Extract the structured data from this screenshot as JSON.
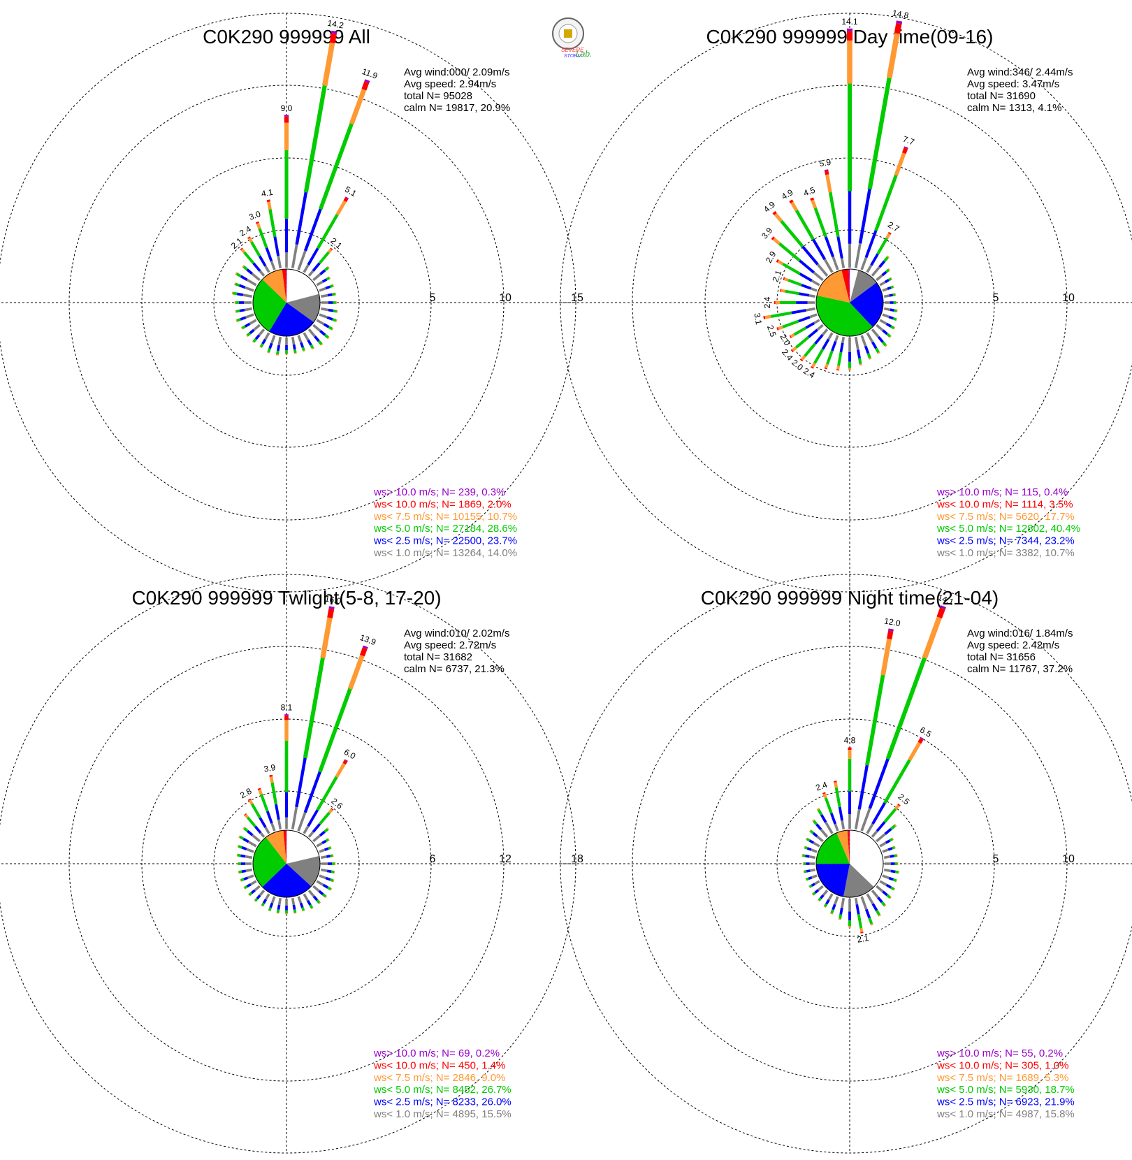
{
  "logo": {
    "text_line1": "SEVERE",
    "text_line2": "STORM",
    "text_lab": "Lab."
  },
  "colors": {
    "gt10": "#9900cc",
    "lt10": "#ff0000",
    "lt7_5": "#ff9933",
    "lt5": "#00cc00",
    "lt2_5": "#0000ff",
    "lt1": "#808080",
    "calm": "#ffffff"
  },
  "chart_data": [
    {
      "type": "wind-rose",
      "title": "C0K290 999999 All",
      "rmax": 15,
      "ring_labels": [
        "5",
        "10",
        "15"
      ],
      "stats": [
        "Avg wind:000/ 2.09m/s",
        "Avg speed: 2.94m/s",
        "total N=      95028",
        "calm N=  19817,  20.9%"
      ],
      "pie_percent": {
        "calm": 20.9,
        "lt1": 14.0,
        "lt2_5": 23.7,
        "lt5": 28.6,
        "lt7_5": 10.7,
        "lt10": 2.0,
        "gt10": 0.3
      },
      "dir_totals": [
        9.0,
        14.2,
        11.9,
        5.1,
        2.1,
        1.2,
        0.9,
        0.9,
        0.9,
        0.9,
        1.0,
        1.1,
        1.1,
        1.2,
        1.2,
        1.1,
        1.0,
        1.0,
        1.0,
        1.1,
        1.1,
        1.0,
        1.0,
        1.0,
        1.0,
        1.1,
        1.0,
        1.0,
        1.2,
        1.2,
        1.4,
        1.3,
        2.1,
        2.4,
        3.0,
        4.1
      ],
      "value_labels": [
        {
          "dir": 0,
          "text": "9.0"
        },
        {
          "dir": 1,
          "text": "14.2"
        },
        {
          "dir": 2,
          "text": "11.9"
        },
        {
          "dir": 3,
          "text": "5.1"
        },
        {
          "dir": 4,
          "text": "2.1"
        },
        {
          "dir": 32,
          "text": "2.1"
        },
        {
          "dir": 33,
          "text": "2.4"
        },
        {
          "dir": 34,
          "text": "3.0"
        },
        {
          "dir": 35,
          "text": "4.1"
        }
      ],
      "legend": [
        {
          "cls": "gt10",
          "text": "ws> 10.0 m/s; N=   239,  0.3%"
        },
        {
          "cls": "lt10",
          "text": "ws< 10.0 m/s; N=  1869,  2.0%"
        },
        {
          "cls": "lt7_5",
          "text": "ws<  7.5 m/s; N= 10155, 10.7%"
        },
        {
          "cls": "lt5",
          "text": "ws<  5.0 m/s; N= 27184, 28.6%"
        },
        {
          "cls": "lt2_5",
          "text": "ws<  2.5 m/s; N= 22500, 23.7%"
        },
        {
          "cls": "lt1",
          "text": "ws<  1.0 m/s; N= 13264, 14.0%"
        }
      ]
    },
    {
      "type": "wind-rose",
      "title": "C0K290 999999 Day time(09-16)",
      "rmax": 15,
      "ring_labels": [
        "5",
        "10",
        "15"
      ],
      "stats": [
        "Avg wind:346/ 2.44m/s",
        "Avg speed: 3.47m/s",
        "total N=      31690",
        "calm N=   1313,   4.1%"
      ],
      "pie_percent": {
        "calm": 4.1,
        "lt1": 10.7,
        "lt2_5": 23.2,
        "lt5": 40.4,
        "lt7_5": 17.7,
        "lt10": 3.5,
        "gt10": 0.4
      },
      "dir_totals": [
        14.1,
        14.8,
        7.7,
        2.7,
        1.5,
        1.0,
        0.8,
        0.7,
        0.7,
        0.7,
        0.8,
        0.9,
        1.0,
        1.1,
        1.3,
        1.4,
        1.5,
        1.7,
        1.9,
        2.0,
        2.1,
        2.4,
        2.4,
        2.4,
        2.0,
        2.5,
        3.1,
        2.4,
        2.1,
        2.1,
        2.9,
        3.9,
        4.9,
        4.9,
        4.5,
        5.9
      ],
      "value_labels": [
        {
          "dir": 0,
          "text": "14.1"
        },
        {
          "dir": 1,
          "text": "14.8"
        },
        {
          "dir": 2,
          "text": "7.7"
        },
        {
          "dir": 3,
          "text": "2.7"
        },
        {
          "dir": 21,
          "text": "2.4"
        },
        {
          "dir": 22,
          "text": "2.0"
        },
        {
          "dir": 23,
          "text": "2.4"
        },
        {
          "dir": 24,
          "text": "2.0"
        },
        {
          "dir": 25,
          "text": "2.5"
        },
        {
          "dir": 26,
          "text": "3.1"
        },
        {
          "dir": 27,
          "text": "2.4"
        },
        {
          "dir": 29,
          "text": "2.1"
        },
        {
          "dir": 30,
          "text": "2.9"
        },
        {
          "dir": 31,
          "text": "3.9"
        },
        {
          "dir": 32,
          "text": "4.9"
        },
        {
          "dir": 33,
          "text": "4.9"
        },
        {
          "dir": 34,
          "text": "4.5"
        },
        {
          "dir": 35,
          "text": "5.9"
        }
      ],
      "legend": [
        {
          "cls": "gt10",
          "text": "ws> 10.0 m/s; N=   115,  0.4%"
        },
        {
          "cls": "lt10",
          "text": "ws< 10.0 m/s; N=  1114,  3.5%"
        },
        {
          "cls": "lt7_5",
          "text": "ws<  7.5 m/s; N=  5620, 17.7%"
        },
        {
          "cls": "lt5",
          "text": "ws<  5.0 m/s; N= 12802, 40.4%"
        },
        {
          "cls": "lt2_5",
          "text": "ws<  2.5 m/s; N=  7344, 23.2%"
        },
        {
          "cls": "lt1",
          "text": "ws<  1.0 m/s; N=  3382, 10.7%"
        }
      ]
    },
    {
      "type": "wind-rose",
      "title": "C0K290 999999 Twlight(5-8, 17-20)",
      "rmax": 18,
      "ring_labels": [
        "6",
        "12",
        "18"
      ],
      "stats": [
        "Avg wind:010/ 2.02m/s",
        "Avg speed: 2.72m/s",
        "total N=      31682",
        "calm N=   6737,  21.3%"
      ],
      "pie_percent": {
        "calm": 21.3,
        "lt1": 15.5,
        "lt2_5": 26.0,
        "lt5": 26.7,
        "lt7_5": 9.0,
        "lt10": 1.4,
        "gt10": 0.2
      },
      "dir_totals": [
        8.1,
        16.0,
        13.9,
        6.0,
        2.6,
        1.4,
        1.0,
        0.9,
        0.9,
        1.0,
        1.0,
        1.1,
        1.2,
        1.2,
        1.2,
        1.2,
        1.1,
        1.1,
        1.1,
        1.1,
        1.1,
        1.0,
        1.0,
        1.0,
        1.0,
        1.0,
        1.0,
        1.0,
        1.1,
        1.2,
        1.4,
        1.5,
        2.1,
        2.8,
        3.2,
        3.9
      ],
      "value_labels": [
        {
          "dir": 0,
          "text": "8.1"
        },
        {
          "dir": 1,
          "text": "16.0"
        },
        {
          "dir": 2,
          "text": "13.9"
        },
        {
          "dir": 3,
          "text": "6.0"
        },
        {
          "dir": 4,
          "text": "2.6"
        },
        {
          "dir": 33,
          "text": "2.8"
        },
        {
          "dir": 35,
          "text": "3.9"
        }
      ],
      "legend": [
        {
          "cls": "gt10",
          "text": "ws> 10.0 m/s; N=    69,  0.2%"
        },
        {
          "cls": "lt10",
          "text": "ws< 10.0 m/s; N=   450,  1.4%"
        },
        {
          "cls": "lt7_5",
          "text": "ws<  7.5 m/s; N=  2846,  9.0%"
        },
        {
          "cls": "lt5",
          "text": "ws<  5.0 m/s; N=  8452, 26.7%"
        },
        {
          "cls": "lt2_5",
          "text": "ws<  2.5 m/s; N=  8233, 26.0%"
        },
        {
          "cls": "lt1",
          "text": "ws<  1.0 m/s; N=  4895, 15.5%"
        }
      ]
    },
    {
      "type": "wind-rose",
      "title": "C0K290 999999 Night time(21-04)",
      "rmax": 15,
      "ring_labels": [
        "5",
        "10",
        "15"
      ],
      "stats": [
        "Avg wind:016/ 1.84m/s",
        "Avg speed: 2.42m/s",
        "total N=      31656",
        "calm N=  11767,  37.2%"
      ],
      "pie_percent": {
        "calm": 37.2,
        "lt1": 15.8,
        "lt2_5": 21.9,
        "lt5": 18.7,
        "lt7_5": 5.3,
        "lt10": 1.0,
        "gt10": 0.2
      },
      "dir_totals": [
        4.8,
        12.0,
        14.1,
        6.5,
        2.5,
        1.5,
        0.9,
        0.8,
        0.8,
        0.8,
        0.9,
        0.9,
        1.0,
        1.1,
        1.2,
        1.5,
        1.8,
        2.1,
        1.7,
        1.3,
        1.1,
        0.9,
        0.8,
        0.8,
        0.7,
        0.7,
        0.7,
        0.7,
        0.8,
        0.8,
        0.9,
        1.0,
        1.3,
        1.7,
        2.4,
        2.9
      ],
      "value_labels": [
        {
          "dir": 0,
          "text": "4.8"
        },
        {
          "dir": 1,
          "text": "12.0"
        },
        {
          "dir": 2,
          "text": "14.1"
        },
        {
          "dir": 3,
          "text": "6.5"
        },
        {
          "dir": 4,
          "text": "2.5"
        },
        {
          "dir": 17,
          "text": "2.1"
        },
        {
          "dir": 34,
          "text": "2.4"
        }
      ],
      "legend": [
        {
          "cls": "gt10",
          "text": "ws> 10.0 m/s; N=    55,  0.2%"
        },
        {
          "cls": "lt10",
          "text": "ws< 10.0 m/s; N=   305,  1.0%"
        },
        {
          "cls": "lt7_5",
          "text": "ws<  7.5 m/s; N=  1689,  5.3%"
        },
        {
          "cls": "lt5",
          "text": "ws<  5.0 m/s; N=  5930, 18.7%"
        },
        {
          "cls": "lt2_5",
          "text": "ws<  2.5 m/s; N=  6923, 21.9%"
        },
        {
          "cls": "lt1",
          "text": "ws<  1.0 m/s; N=  4987, 15.8%"
        }
      ]
    }
  ]
}
